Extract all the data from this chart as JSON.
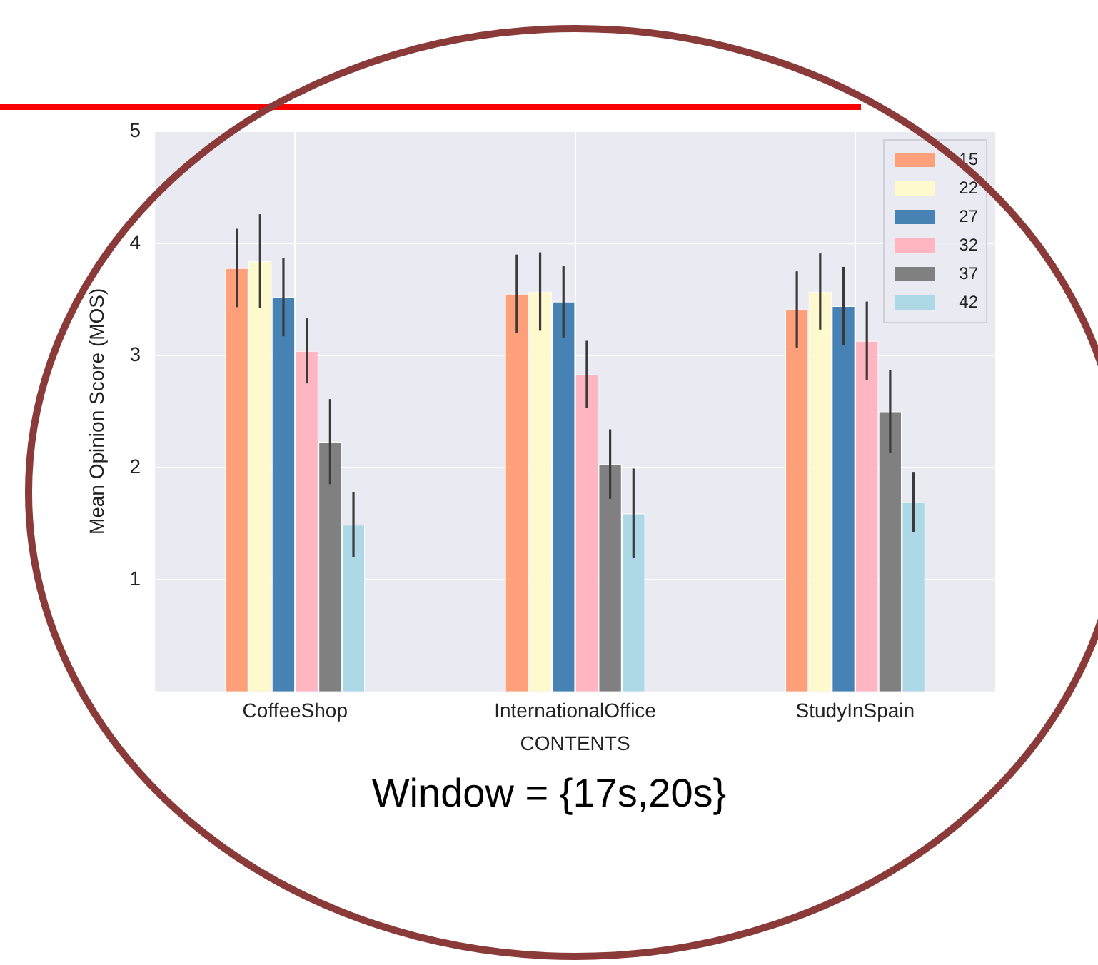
{
  "chart_data": {
    "type": "bar",
    "categories": [
      "CoffeeShop",
      "InternationalOffice",
      "StudyInSpain"
    ],
    "xlabel": "CONTENTS",
    "ylabel": "Mean Opinion Score (MOS)",
    "ylim": [
      0,
      5
    ],
    "yticks": [
      1,
      2,
      3,
      4,
      5
    ],
    "grid": true,
    "legend": "top right",
    "series": [
      {
        "name": "15",
        "color": "#ffa07a",
        "values": [
          3.78,
          3.55,
          3.41
        ],
        "errors": [
          0.35,
          0.35,
          0.34
        ]
      },
      {
        "name": "22",
        "color": "#fffacd",
        "values": [
          3.84,
          3.57,
          3.57
        ],
        "errors": [
          0.42,
          0.35,
          0.34
        ]
      },
      {
        "name": "27",
        "color": "#4682b4",
        "values": [
          3.52,
          3.48,
          3.44
        ],
        "errors": [
          0.35,
          0.32,
          0.35
        ]
      },
      {
        "name": "32",
        "color": "#ffb6c1",
        "values": [
          3.04,
          2.83,
          3.13
        ],
        "errors": [
          0.29,
          0.3,
          0.35
        ]
      },
      {
        "name": "37",
        "color": "#808080",
        "values": [
          2.23,
          2.03,
          2.5
        ],
        "errors": [
          0.38,
          0.31,
          0.37
        ]
      },
      {
        "name": "42",
        "color": "#add8e6",
        "values": [
          1.49,
          1.59,
          1.69
        ],
        "errors": [
          0.29,
          0.4,
          0.27
        ]
      }
    ],
    "annotations": [
      "Window = {17s,20s}"
    ]
  }
}
